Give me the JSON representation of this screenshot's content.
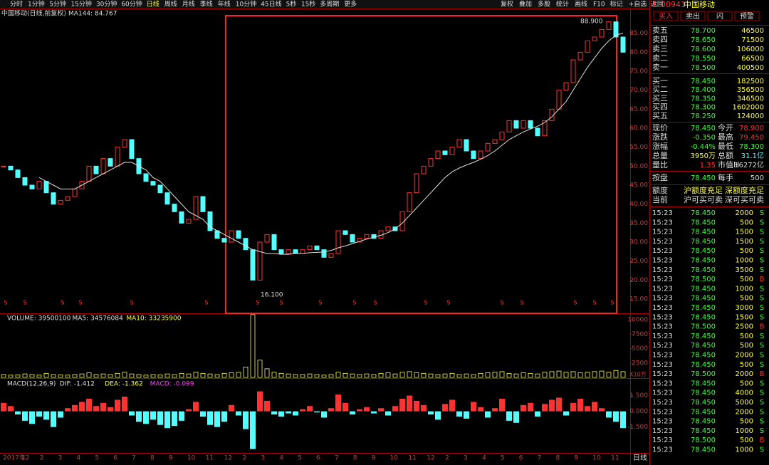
{
  "toolbar": {
    "left": [
      "分时",
      "1分钟",
      "5分钟",
      "15分钟",
      "30分钟",
      "60分钟",
      "日线",
      "周线",
      "月线",
      "季线",
      "年线",
      "10分钟",
      "45日线",
      "5秒",
      "15秒",
      "多周期",
      "更多"
    ],
    "active": 6,
    "right": [
      "复权",
      "叠加",
      "多股",
      "统计",
      "画线",
      "F10",
      "标记",
      "+自选",
      "返回"
    ]
  },
  "chart_data": [
    {
      "type": "candlestick",
      "series": [
        {
          "name": "中国移动(日线,前复权)",
          "color": "#ff3232",
          "down_color": "#54ffff",
          "values": [
            50,
            49,
            47,
            45,
            44,
            46,
            43,
            40,
            41,
            42,
            44,
            46,
            50,
            48,
            52,
            50,
            55,
            57,
            52,
            48,
            46,
            45,
            43,
            40,
            38,
            35,
            36,
            42,
            38,
            33,
            31,
            30,
            33,
            31,
            28,
            20,
            30,
            32,
            28,
            27,
            28,
            27,
            28,
            29,
            28,
            26,
            27,
            33,
            32,
            30,
            31,
            32,
            31,
            33,
            34,
            33,
            38,
            43,
            48,
            50,
            52,
            54,
            53,
            55,
            57,
            54,
            52,
            54,
            56,
            57,
            59,
            62,
            60,
            62,
            60,
            58,
            62,
            65,
            70,
            72,
            78,
            80,
            83,
            84,
            86,
            88,
            84,
            80
          ]
        },
        {
          "name": "MA144: 84.767",
          "color": "#e0e0e0",
          "values": [
            null,
            null,
            null,
            null,
            null,
            47,
            46,
            45,
            44,
            44,
            44,
            45,
            46,
            47,
            48,
            49,
            50,
            51,
            51,
            50,
            49,
            47,
            46,
            44,
            42,
            40,
            38,
            37,
            36,
            34,
            33,
            32,
            31,
            30,
            29,
            28,
            27.5,
            27,
            27,
            26.8,
            26.8,
            27,
            27,
            27.2,
            27.3,
            27.4,
            27.8,
            28.5,
            29,
            29.6,
            30.2,
            30.8,
            31.3,
            31.8,
            32.5,
            33.5,
            35,
            37,
            39,
            41,
            43,
            45,
            47,
            48.5,
            49.5,
            50.3,
            51,
            51.8,
            52.8,
            54,
            55.5,
            57,
            58,
            59,
            59.8,
            60.5,
            61.5,
            63,
            65,
            67,
            70,
            73,
            76,
            78.5,
            81,
            83,
            84.5,
            85
          ]
        }
      ],
      "ylim": [
        11.25,
        91.5
      ],
      "yticks": [
        {
          "value": 15,
          "label": "15.00"
        },
        {
          "value": 20,
          "label": "20.00"
        },
        {
          "value": 25,
          "label": "25.00"
        },
        {
          "value": 30,
          "label": "30.00"
        },
        {
          "value": 35,
          "label": "35.00"
        },
        {
          "value": 40,
          "label": "40.00"
        },
        {
          "value": 45,
          "label": "45.00"
        },
        {
          "value": 50,
          "label": "50.00"
        },
        {
          "value": 55,
          "label": "55.00"
        },
        {
          "value": 60,
          "label": "60.00"
        },
        {
          "value": 65,
          "label": "65.00"
        },
        {
          "value": 70,
          "label": "70.00"
        },
        {
          "value": 75,
          "label": "75.00"
        },
        {
          "value": 80,
          "label": "80.00"
        },
        {
          "value": 85,
          "label": "85.00"
        }
      ],
      "annotations": [
        "88.900",
        "16.100"
      ],
      "signal_label": "S"
    },
    {
      "type": "bar",
      "title_parts": [
        "VOLUME: 39500100",
        "MA5: 34576084",
        "MA10: 33235900"
      ],
      "title_colors": [
        "#e0e0e0",
        "#e0e0e0",
        "#ffff40"
      ],
      "color": "#ffff40",
      "values": [
        500,
        400,
        450,
        600,
        500,
        400,
        700,
        500,
        450,
        400,
        500,
        600,
        800,
        500,
        600,
        500,
        700,
        900,
        600,
        500,
        400,
        500,
        450,
        600,
        500,
        700,
        600,
        900,
        700,
        600,
        500,
        700,
        800,
        900,
        1800,
        10900,
        3000,
        1500,
        900,
        700,
        600,
        500,
        500,
        600,
        500,
        400,
        500,
        900,
        700,
        600,
        500,
        600,
        500,
        700,
        800,
        600,
        900,
        1000,
        800,
        700,
        600,
        500,
        600,
        700,
        500,
        600,
        500,
        700,
        800,
        900,
        1000,
        700,
        600,
        800,
        700,
        600,
        900,
        1000,
        1100,
        900,
        1000,
        800,
        900,
        1000,
        1100,
        900,
        1200,
        1000
      ],
      "ylim": [
        0,
        11000
      ],
      "yticks": [
        2500,
        5000,
        7500,
        10000
      ],
      "unit_label": "X10万"
    },
    {
      "type": "histogram_bar",
      "title_parts": [
        "MACD(12,26,9)",
        "DIF: -1.412",
        "DEA: -1.362",
        "MACD: -0.099"
      ],
      "title_colors": [
        "#e0e0e0",
        "#e0e0e0",
        "#ffff40",
        "#ff40ff"
      ],
      "color": "#ff3232",
      "down_color": "#54ffff",
      "values": [
        0.8,
        0.5,
        -0.3,
        -0.9,
        -1.2,
        -0.5,
        -0.8,
        -1.5,
        -0.6,
        0.3,
        0.6,
        0.9,
        1.2,
        0.5,
        0.8,
        0.4,
        1.1,
        1.4,
        -0.4,
        -1.0,
        -1.2,
        -0.8,
        -1.3,
        -1.6,
        -1.4,
        -0.9,
        0.2,
        0.9,
        -0.5,
        -1.3,
        -1.5,
        -1.0,
        0.6,
        -0.4,
        -1.7,
        -3.6,
        1.9,
        1.0,
        -0.3,
        -0.5,
        -0.2,
        -0.4,
        0.2,
        0.5,
        -0.1,
        -0.6,
        0.3,
        1.6,
        0.8,
        -0.3,
        0.2,
        0.4,
        -0.2,
        0.3,
        -0.4,
        0.5,
        1.2,
        1.5,
        1.0,
        0.6,
        -0.3,
        -0.8,
        0.7,
        1.1,
        -0.5,
        -0.7,
        0.9,
        0.4,
        -0.6,
        0.3,
        1.2,
        -0.9,
        -1.1,
        0.6,
        0.8,
        -0.5,
        0.7,
        1.1,
        1.3,
        -0.4,
        0.8,
        1.2,
        0.5,
        0.9,
        0.3,
        -0.6,
        -1.0,
        -1.6
      ],
      "ylim": [
        -3.9,
        3.1
      ],
      "yticks": [
        {
          "value": 1.5,
          "label": "1.500"
        },
        {
          "value": 0,
          "label": "0.000"
        },
        {
          "value": -1.5,
          "label": "-1.500"
        }
      ],
      "xtick_labels": [
        "2017年",
        "12",
        "2",
        "3",
        "4",
        "5",
        "6",
        "7",
        "8",
        "9",
        "10",
        "11",
        "12",
        "2",
        "3",
        "4",
        "5",
        "6",
        "7",
        "8",
        "9",
        "10",
        "11",
        "12",
        "2",
        "3",
        "4",
        "5",
        "6",
        "7",
        "8",
        "9",
        "10",
        "11"
      ],
      "period": "日线"
    }
  ],
  "quote_panel": {
    "code_prefix": "L",
    "code": "00941",
    "name": "中国移动",
    "buttons": [
      "买入",
      "卖出",
      "闪",
      "预警"
    ],
    "order_book": [
      [
        "卖五",
        "78.700",
        "46500"
      ],
      [
        "卖四",
        "78.650",
        "71500"
      ],
      [
        "卖三",
        "78.600",
        "106000"
      ],
      [
        "卖二",
        "78.550",
        "66500"
      ],
      [
        "卖一",
        "78.500",
        "400500"
      ],
      [
        "买一",
        "78.450",
        "182500"
      ],
      [
        "买二",
        "78.400",
        "356500"
      ],
      [
        "买三",
        "78.350",
        "346500"
      ],
      [
        "买四",
        "78.300",
        "1602000"
      ],
      [
        "买五",
        "78.250",
        "124000"
      ]
    ],
    "quote": [
      [
        "现价",
        "78.450",
        "今开",
        "78.900"
      ],
      [
        "涨跌",
        "-0.350",
        "最高",
        "79.450"
      ],
      [
        "涨幅",
        "-0.44%",
        "最低",
        "78.300"
      ],
      [
        "总量",
        "3950万",
        "总额",
        "31.1亿"
      ],
      [
        "量比",
        "1.35",
        "市值H",
        "16272亿"
      ],
      [
        "按盘",
        "78.450",
        "每手",
        "500"
      ],
      [
        "额度",
        "沪额度充足",
        "深额度充足"
      ],
      [
        "当前",
        "沪可买可卖",
        "深可买可卖"
      ]
    ],
    "trades": [
      [
        "15:23",
        "78.450",
        "2000",
        "S"
      ],
      [
        "15:23",
        "78.450",
        "500",
        "S"
      ],
      [
        "15:23",
        "78.450",
        "1500",
        "S"
      ],
      [
        "15:23",
        "78.450",
        "1500",
        "S"
      ],
      [
        "15:23",
        "78.450",
        "500",
        "S"
      ],
      [
        "15:23",
        "78.450",
        "1000",
        "S"
      ],
      [
        "15:23",
        "78.450",
        "3500",
        "S"
      ],
      [
        "15:23",
        "78.500",
        "500",
        "B"
      ],
      [
        "15:23",
        "78.450",
        "1000",
        "S"
      ],
      [
        "15:23",
        "78.450",
        "500",
        "S"
      ],
      [
        "15:23",
        "78.450",
        "3000",
        "S"
      ],
      [
        "15:23",
        "78.450",
        "1500",
        "S"
      ],
      [
        "15:23",
        "78.500",
        "2500",
        "B"
      ],
      [
        "15:23",
        "78.450",
        "500",
        "S"
      ],
      [
        "15:23",
        "78.450",
        "500",
        "S"
      ],
      [
        "15:23",
        "78.450",
        "2000",
        "S"
      ],
      [
        "15:23",
        "78.450",
        "500",
        "S"
      ],
      [
        "15:23",
        "78.500",
        "2000",
        "B"
      ],
      [
        "15:23",
        "78.450",
        "500",
        "S"
      ],
      [
        "15:23",
        "78.450",
        "4000",
        "S"
      ],
      [
        "15:23",
        "78.450",
        "5000",
        "S"
      ],
      [
        "15:23",
        "78.450",
        "2000",
        "S"
      ],
      [
        "15:23",
        "78.450",
        "500",
        "S"
      ],
      [
        "15:23",
        "78.450",
        "1000",
        "S"
      ],
      [
        "15:23",
        "78.500",
        "500",
        "B"
      ],
      [
        "15:23",
        "78.450",
        "1000",
        "S"
      ]
    ]
  }
}
